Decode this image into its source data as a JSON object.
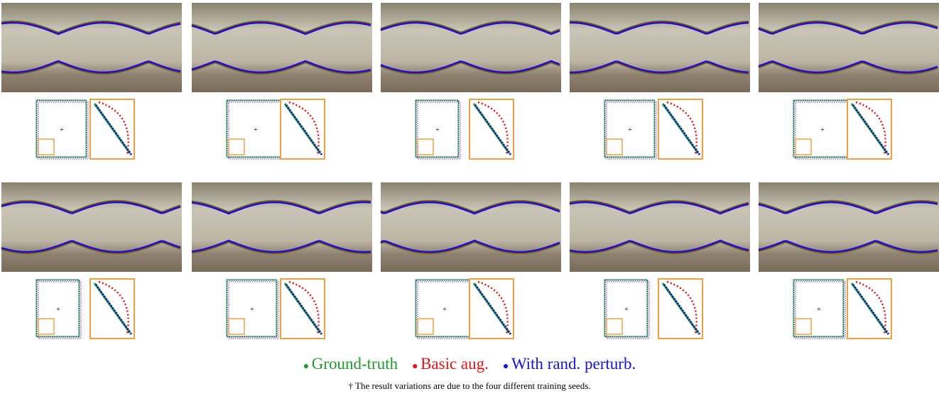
{
  "legend": {
    "items": [
      {
        "label": "Ground-truth",
        "color": "#1f9b2a"
      },
      {
        "label": "Basic aug.",
        "color": "#e31414"
      },
      {
        "label": "With rand. perturb.",
        "color": "#1414d2"
      }
    ]
  },
  "footnote": "† The result variations are due to the four different training seeds."
}
